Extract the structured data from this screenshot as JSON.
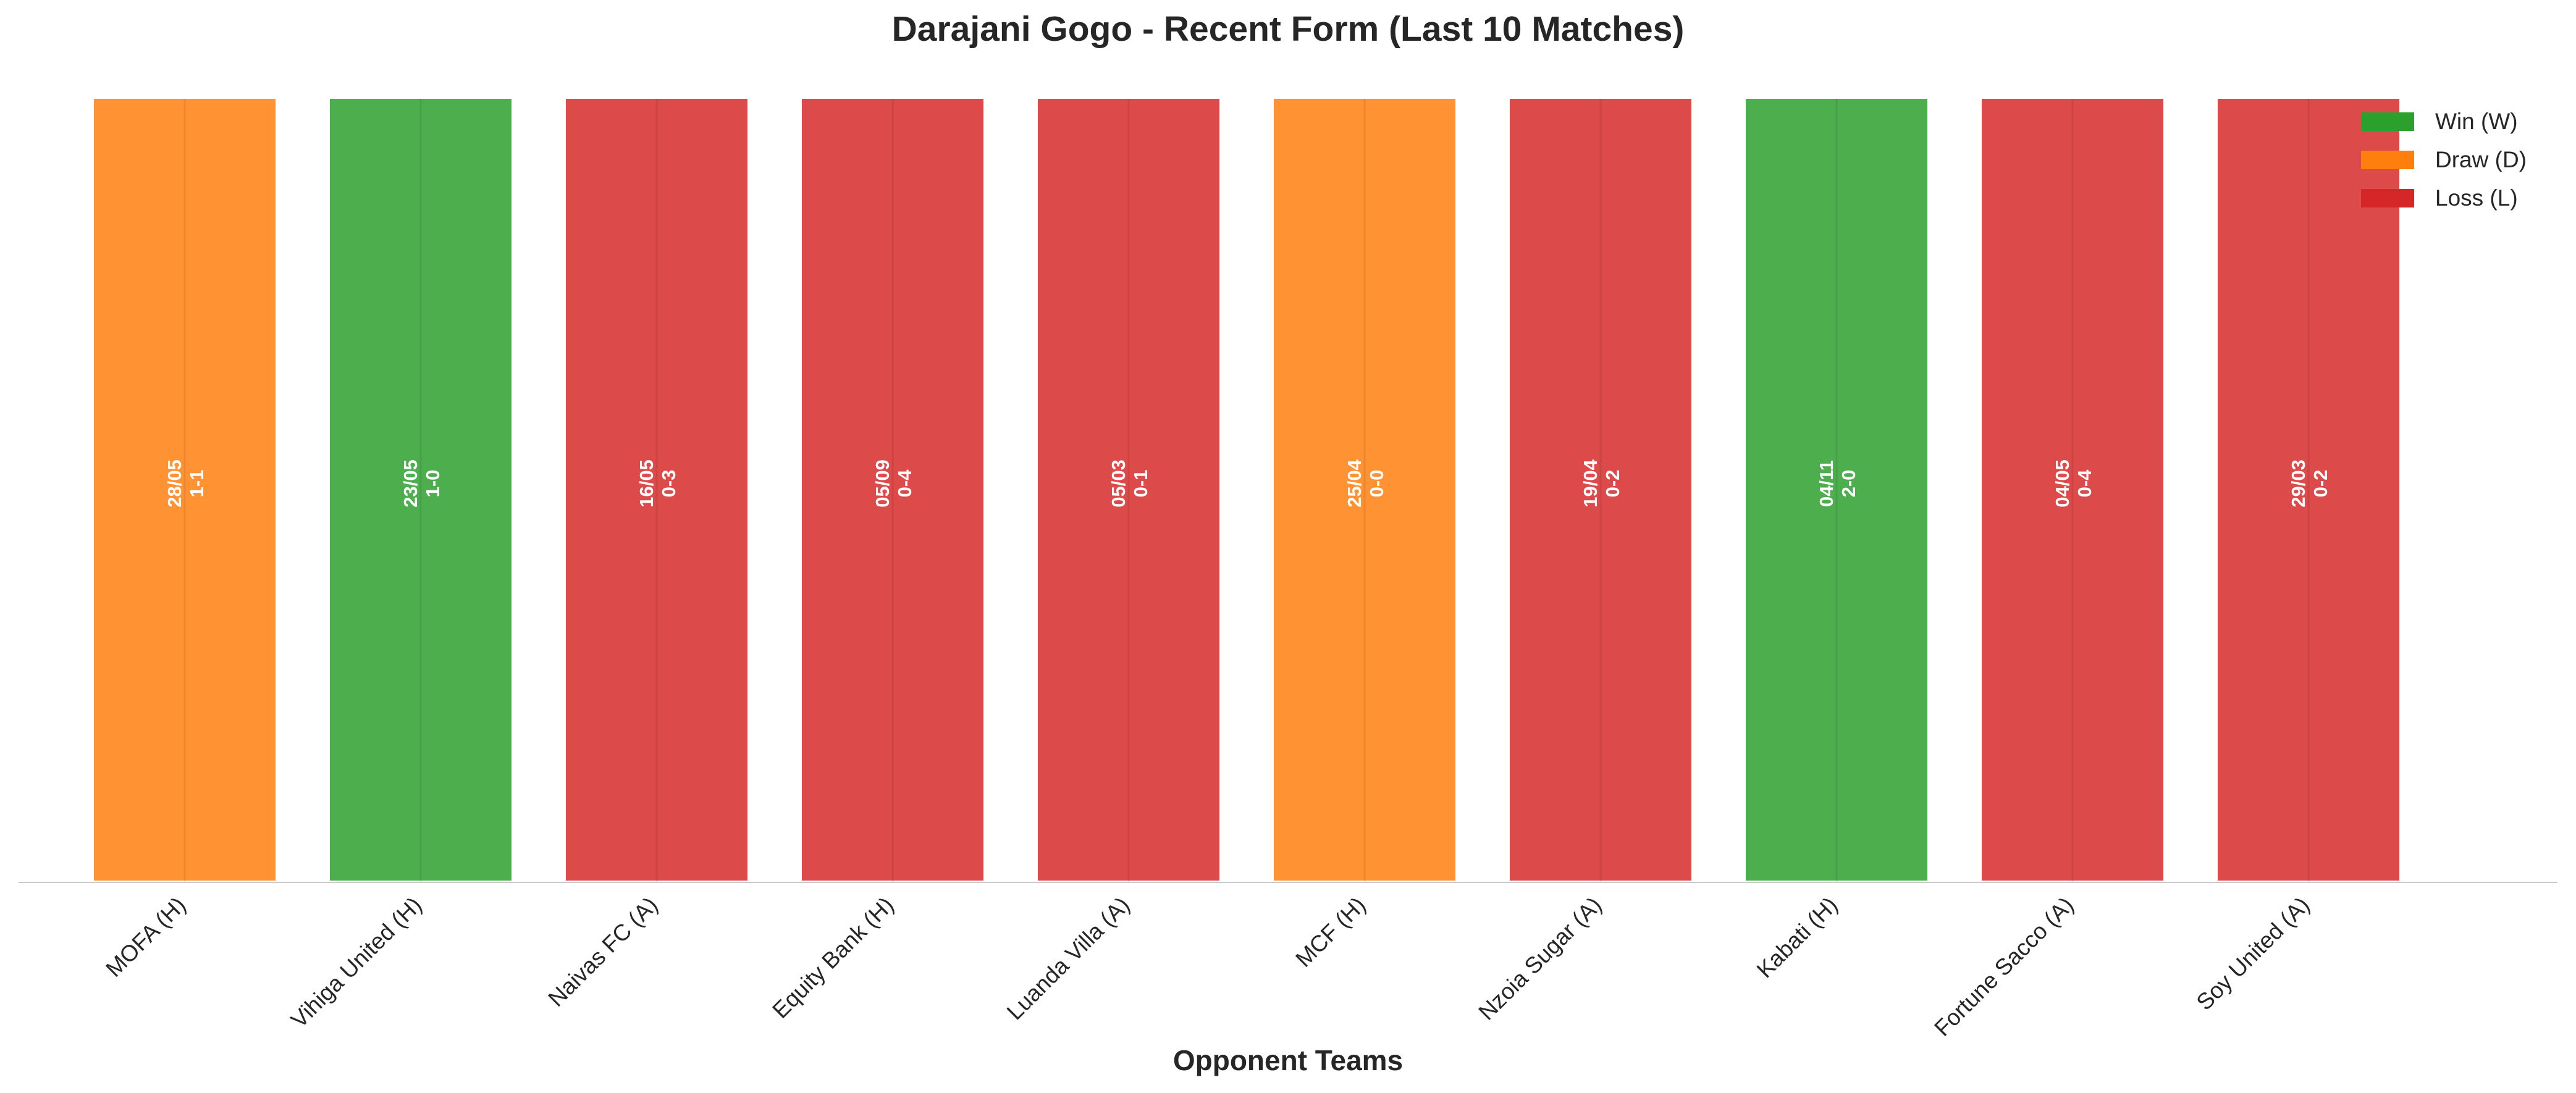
{
  "chart_data": {
    "type": "bar",
    "title": "Darajani Gogo - Recent Form (Last 10 Matches)",
    "xlabel": "Opponent Teams",
    "ylabel": "",
    "categories": [
      "MOFA (H)",
      "Vihiga United (H)",
      "Naivas FC (A)",
      "Equity Bank (H)",
      "Luanda Villa (A)",
      "MCF (H)",
      "Nzoia Sugar (A)",
      "Kabati (H)",
      "Fortune Sacco (A)",
      "Soy United (A)"
    ],
    "results": [
      "D",
      "W",
      "L",
      "L",
      "L",
      "D",
      "L",
      "W",
      "L",
      "L"
    ],
    "dates": [
      "28/05",
      "23/05",
      "16/05",
      "05/09",
      "05/03",
      "25/04",
      "19/04",
      "04/11",
      "04/05",
      "29/03"
    ],
    "scores": [
      "1-1",
      "1-0",
      "0-3",
      "0-4",
      "0-1",
      "0-0",
      "0-2",
      "2-0",
      "0-4",
      "0-2"
    ],
    "values": [
      1,
      1,
      1,
      1,
      1,
      1,
      1,
      1,
      1,
      1
    ],
    "ylim": [
      0,
      1
    ],
    "grid": false,
    "legend": {
      "placement": "top-right",
      "entries": [
        {
          "key": "W",
          "label": "Win (W)",
          "color": "#2ca02c"
        },
        {
          "key": "D",
          "label": "Draw (D)",
          "color": "#ff7f0e"
        },
        {
          "key": "L",
          "label": "Loss (L)",
          "color": "#d62728"
        }
      ]
    },
    "bar_colors": {
      "W": "#4cae4c",
      "D": "#ff9232",
      "L": "#dd4a4a"
    }
  }
}
